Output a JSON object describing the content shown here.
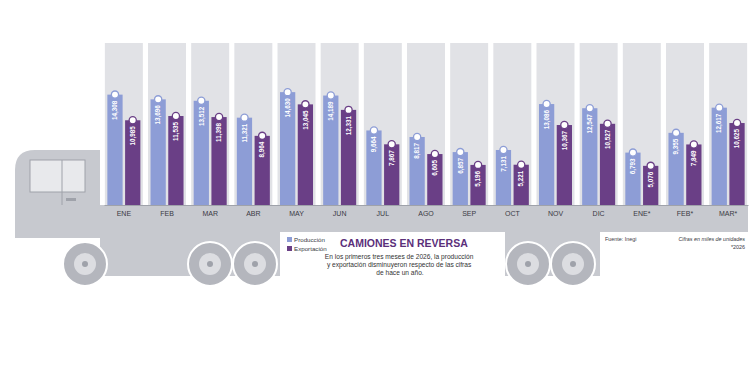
{
  "chart_data": {
    "type": "bar",
    "title": "CAMIONES EN REVERSA",
    "subtitle": "En los primeros tres meses de 2026, la producción y exportación disminuyeron respecto de las cifras de hace un año.",
    "source": "Fuente: Inegi",
    "note": "Cifras en miles de unidades",
    "footnote": "*2026",
    "categories": [
      "ENE",
      "FEB",
      "MAR",
      "ABR",
      "MAY",
      "JUN",
      "JUL",
      "AGO",
      "SEP",
      "OCT",
      "NOV",
      "DIC",
      "ENE*",
      "FEB*",
      "MAR*"
    ],
    "series": [
      {
        "name": "Producción",
        "color": "#8d9dd6",
        "values": [
          14308,
          13696,
          13512,
          11321,
          14630,
          14189,
          9664,
          8817,
          6857,
          7131,
          13086,
          12547,
          6793,
          9355,
          12617
        ],
        "value_labels": [
          "14,308",
          "13,696",
          "13,512",
          "11,321",
          "14,630",
          "14,189",
          "9,664",
          "8,817",
          "6,857",
          "7,131",
          "13,086",
          "12,547",
          "6,793",
          "9,355",
          "12,617"
        ]
      },
      {
        "name": "Exportación",
        "color": "#6a3f86",
        "values": [
          10985,
          11535,
          11398,
          8964,
          13045,
          12331,
          7867,
          6605,
          5196,
          5221,
          10367,
          10527,
          5076,
          7849,
          10625
        ],
        "value_labels": [
          "10,985",
          "11,535",
          "11,398",
          "8,964",
          "13,045",
          "12,331",
          "7,867",
          "6,605",
          "5,196",
          "5,221",
          "10,367",
          "10,527",
          "5,076",
          "7,849",
          "10,625"
        ]
      }
    ],
    "ylim": [
      0,
      21000
    ],
    "tick_labels": "x",
    "data_labels": true,
    "legend": "bottom"
  }
}
